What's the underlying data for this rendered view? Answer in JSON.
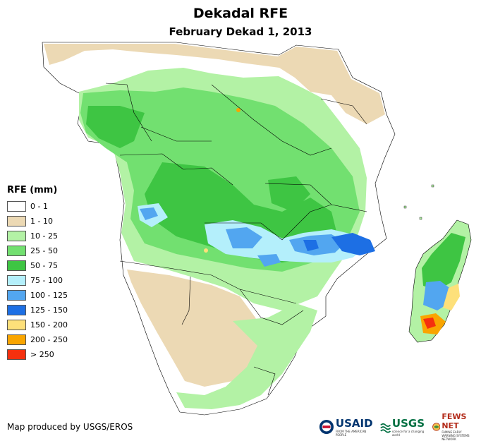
{
  "header": {
    "title": "Dekadal RFE",
    "subtitle": "February Dekad 1, 2013"
  },
  "legend": {
    "title": "RFE (mm)",
    "items": [
      {
        "label": "0 - 1",
        "color": "#ffffff"
      },
      {
        "label": "1 - 10",
        "color": "#ecd9b4"
      },
      {
        "label": "10 - 25",
        "color": "#b3f2a5"
      },
      {
        "label": "25 - 50",
        "color": "#72e070"
      },
      {
        "label": "50 - 75",
        "color": "#3ec543"
      },
      {
        "label": "75 - 100",
        "color": "#b4effb"
      },
      {
        "label": "100 - 125",
        "color": "#52a6f0"
      },
      {
        "label": "125 - 150",
        "color": "#1d6fe4"
      },
      {
        "label": "150 - 200",
        "color": "#fde07a"
      },
      {
        "label": "200 - 250",
        "color": "#f9a500"
      },
      {
        "label": "> 250",
        "color": "#f5300e"
      }
    ]
  },
  "footer": {
    "credit": "Map produced by USGS/EROS"
  },
  "logos": {
    "usaid": "USAID",
    "usaid_tag": "FROM THE AMERICAN PEOPLE",
    "usgs": "USGS",
    "usgs_tag": "science for a changing world",
    "fews": "FEWS NET",
    "fews_tag": "FAMINE EARLY WARNING SYSTEMS NETWORK"
  }
}
